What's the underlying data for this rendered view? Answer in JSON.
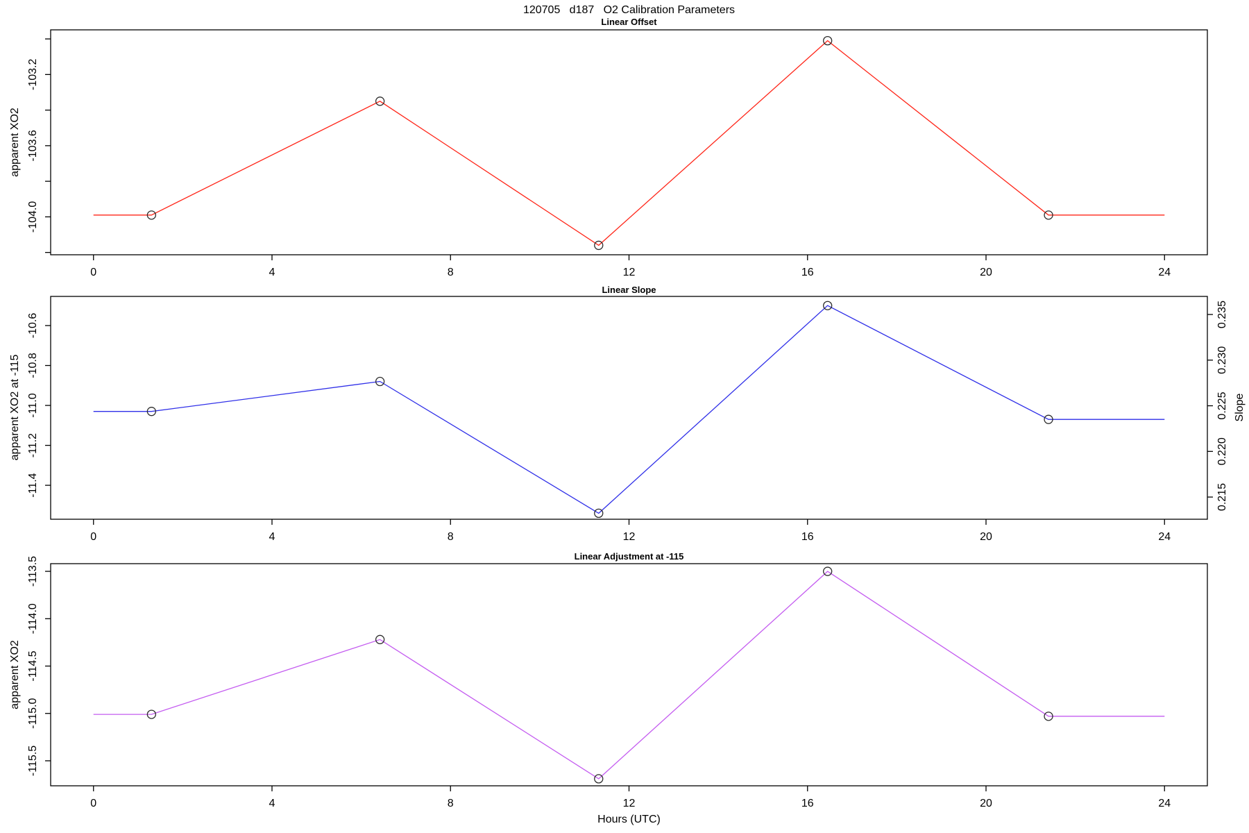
{
  "page_title": "120705   d187   O2 Calibration Parameters",
  "xlabel": "Hours (UTC)",
  "chart_data": [
    {
      "type": "line",
      "title": "Linear Offset",
      "ylabel": "apparent XO2",
      "color": "#ff2619",
      "marker_color": "#2b2b2b",
      "x": [
        1.3,
        6.42,
        11.32,
        16.45,
        21.4
      ],
      "values": [
        -103.99,
        -103.35,
        -104.16,
        -103.01,
        -103.99
      ],
      "extend_x": [
        0,
        24
      ],
      "xlim": [
        -0.96,
        24.96
      ],
      "ylim": [
        -104.213,
        -102.949
      ],
      "grid": false,
      "xticks": [
        {
          "v": 0,
          "label": "0"
        },
        {
          "v": 4,
          "label": "4"
        },
        {
          "v": 8,
          "label": "8"
        },
        {
          "v": 12,
          "label": "12"
        },
        {
          "v": 16,
          "label": "16"
        },
        {
          "v": 20,
          "label": "20"
        },
        {
          "v": 24,
          "label": "24"
        }
      ],
      "yticks": [
        {
          "v": -103.0,
          "label": ""
        },
        {
          "v": -103.2,
          "label": "-103.2"
        },
        {
          "v": -103.4,
          "label": ""
        },
        {
          "v": -103.6,
          "label": "-103.6"
        },
        {
          "v": -103.8,
          "label": ""
        },
        {
          "v": -104.0,
          "label": "-104.0"
        },
        {
          "v": -104.2,
          "label": ""
        }
      ]
    },
    {
      "type": "line",
      "title": "Linear Slope",
      "ylabel": "apparent XO2 at -115",
      "color": "#2f2fe8",
      "marker_color": "#2b2b2b",
      "x": [
        1.3,
        6.42,
        11.32,
        16.45,
        21.4
      ],
      "values": [
        -11.03,
        -10.88,
        -11.54,
        -10.5,
        -11.07
      ],
      "extend_x": [
        0,
        24
      ],
      "xlim": [
        -0.96,
        24.96
      ],
      "ylim": [
        -11.57,
        -10.454
      ],
      "grid": false,
      "xticks": [
        {
          "v": 0,
          "label": "0"
        },
        {
          "v": 4,
          "label": "4"
        },
        {
          "v": 8,
          "label": "8"
        },
        {
          "v": 12,
          "label": "12"
        },
        {
          "v": 16,
          "label": "16"
        },
        {
          "v": 20,
          "label": "20"
        },
        {
          "v": 24,
          "label": "24"
        }
      ],
      "yticks": [
        {
          "v": -10.6,
          "label": "-10.6"
        },
        {
          "v": -10.8,
          "label": "-10.8"
        },
        {
          "v": -11.0,
          "label": "-11.0"
        },
        {
          "v": -11.2,
          "label": "-11.2"
        },
        {
          "v": -11.4,
          "label": "-11.4"
        }
      ],
      "right_axis": {
        "label": "Slope",
        "lim": [
          0.21257,
          0.23698
        ],
        "ticks": [
          {
            "v": 0.215,
            "label": "0.215"
          },
          {
            "v": 0.22,
            "label": "0.220"
          },
          {
            "v": 0.225,
            "label": "0.225"
          },
          {
            "v": 0.23,
            "label": "0.230"
          },
          {
            "v": 0.235,
            "label": "0.235"
          }
        ]
      }
    },
    {
      "type": "line",
      "title": "Linear Adjustment at -115",
      "ylabel": "apparent XO2",
      "color": "#c45cf0",
      "marker_color": "#2b2b2b",
      "x": [
        1.3,
        6.42,
        11.32,
        16.45,
        21.4
      ],
      "values": [
        -115.01,
        -114.22,
        -115.69,
        -113.5,
        -115.03
      ],
      "extend_x": [
        0,
        24
      ],
      "xlim": [
        -0.96,
        24.96
      ],
      "ylim": [
        -115.764,
        -113.419
      ],
      "grid": false,
      "xticks": [
        {
          "v": 0,
          "label": "0"
        },
        {
          "v": 4,
          "label": "4"
        },
        {
          "v": 8,
          "label": "8"
        },
        {
          "v": 12,
          "label": "12"
        },
        {
          "v": 16,
          "label": "16"
        },
        {
          "v": 20,
          "label": "20"
        },
        {
          "v": 24,
          "label": "24"
        }
      ],
      "yticks": [
        {
          "v": -113.5,
          "label": "-113.5"
        },
        {
          "v": -114.0,
          "label": "-114.0"
        },
        {
          "v": -114.5,
          "label": "-114.5"
        },
        {
          "v": -115.0,
          "label": "-115.0"
        },
        {
          "v": -115.5,
          "label": "-115.5"
        }
      ]
    }
  ]
}
